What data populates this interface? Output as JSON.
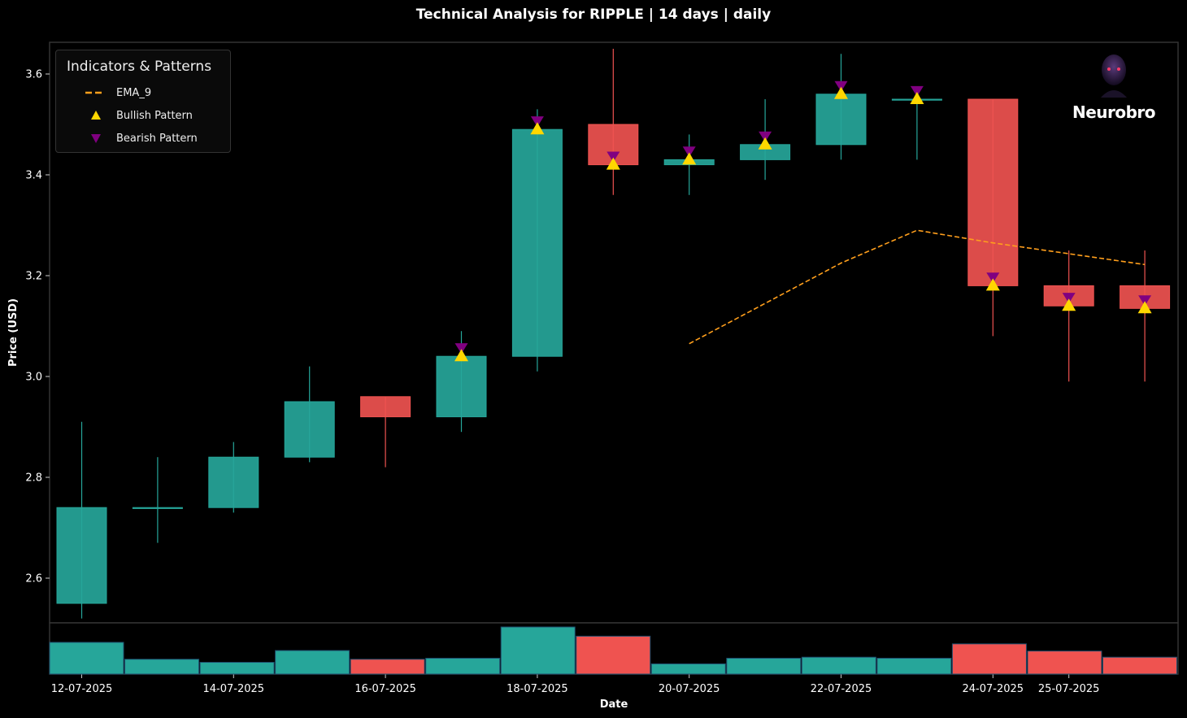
{
  "chart_data": {
    "type": "candlestick",
    "title": "Technical Analysis for RIPPLE | 14 days | daily",
    "xlabel": "Date",
    "ylabel": "Price (USD)",
    "ylim": [
      2.5,
      3.66
    ],
    "y_ticks": [
      "2.6",
      "2.8",
      "3.0",
      "3.2",
      "3.4",
      "3.6"
    ],
    "y_tick_values": [
      2.6,
      2.8,
      3.0,
      3.2,
      3.4,
      3.6
    ],
    "x_tick_labels": [
      "12-07-2025",
      "14-07-2025",
      "16-07-2025",
      "18-07-2025",
      "20-07-2025",
      "22-07-2025",
      "24-07-2025",
      "25-07-2025"
    ],
    "x_tick_indices": [
      0,
      2,
      4,
      6,
      8,
      10,
      12,
      13
    ],
    "dates": [
      "12-07-2025",
      "13-07-2025",
      "14-07-2025",
      "15-07-2025",
      "16-07-2025",
      "17-07-2025",
      "18-07-2025",
      "19-07-2025",
      "20-07-2025",
      "21-07-2025",
      "22-07-2025",
      "23-07-2025",
      "24-07-2025",
      "25-07-2025"
    ],
    "open": [
      2.55,
      2.74,
      2.74,
      2.84,
      2.96,
      2.92,
      3.04,
      3.5,
      3.42,
      3.43,
      3.46,
      3.55,
      3.55,
      3.18
    ],
    "high": [
      2.91,
      2.84,
      2.87,
      3.02,
      2.96,
      3.09,
      3.53,
      3.65,
      3.48,
      3.55,
      3.64,
      3.57,
      3.55,
      3.25
    ],
    "low": [
      2.52,
      2.67,
      2.73,
      2.83,
      2.82,
      2.89,
      3.01,
      3.36,
      3.36,
      3.39,
      3.43,
      3.43,
      3.08,
      2.99
    ],
    "close": [
      2.74,
      2.74,
      2.84,
      2.95,
      2.92,
      3.04,
      3.49,
      3.42,
      3.43,
      3.46,
      3.56,
      3.55,
      3.18,
      3.14
    ],
    "extra_candle": {
      "index": 13,
      "open": 3.18,
      "high": 3.25,
      "low": 2.99,
      "close": 3.135
    },
    "volume_relative": [
      0.62,
      0.29,
      0.23,
      0.46,
      0.29,
      0.31,
      0.92,
      0.74,
      0.2,
      0.31,
      0.33,
      0.31,
      0.59,
      0.45,
      0.33
    ],
    "ema_9": {
      "label": "EMA_9",
      "points": [
        [
          8,
          3.065
        ],
        [
          10,
          3.225
        ],
        [
          11,
          3.29
        ],
        [
          12,
          3.265
        ],
        [
          14,
          3.222
        ]
      ]
    },
    "bullish_pattern": {
      "label": "Bullish Pattern",
      "points": [
        [
          5,
          3.04
        ],
        [
          6,
          3.49
        ],
        [
          7,
          3.42
        ],
        [
          8,
          3.43
        ],
        [
          9,
          3.46
        ],
        [
          10,
          3.56
        ],
        [
          11,
          3.55
        ],
        [
          12,
          3.18
        ],
        [
          13,
          3.14
        ],
        [
          14,
          3.135
        ]
      ]
    },
    "bearish_pattern": {
      "label": "Bearish Pattern",
      "points": [
        [
          5,
          3.045
        ],
        [
          6,
          3.495
        ],
        [
          7,
          3.425
        ],
        [
          8,
          3.435
        ],
        [
          9,
          3.465
        ],
        [
          10,
          3.565
        ],
        [
          11,
          3.555
        ],
        [
          12,
          3.185
        ],
        [
          13,
          3.145
        ],
        [
          14,
          3.14
        ]
      ]
    },
    "legend": {
      "title": "Indicators & Patterns",
      "position": "top-left"
    },
    "colors": {
      "bull": "#26a69a",
      "bear": "#ef5350",
      "ema": "#ff9f1c",
      "bullish_marker": "#ffd700",
      "bearish_marker": "#800080",
      "axis": "#333333"
    }
  },
  "logo": {
    "text": "Neurobro"
  }
}
